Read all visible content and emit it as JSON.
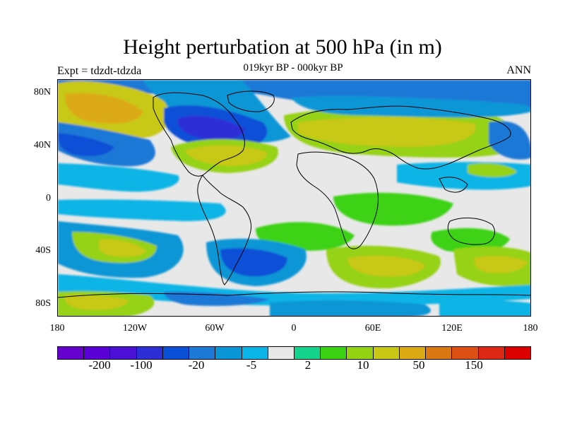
{
  "title": "Height perturbation at 500 hPa (in m)",
  "subtitle": "019kyr BP - 000kyr BP",
  "left_label": "Expt = tdzdt-tdzda",
  "right_label": "ANN",
  "y_axis_labels": [
    "80N",
    "40N",
    "0",
    "40S",
    "80S"
  ],
  "x_axis_labels": [
    "180",
    "120W",
    "60W",
    "0",
    "60E",
    "120E",
    "180"
  ],
  "colorbar": {
    "colors": [
      "#6600cc",
      "#5a00d6",
      "#4a10d6",
      "#2e2ed6",
      "#0a50d6",
      "#1e78d6",
      "#0a96d6",
      "#0ab4e6",
      "#e8e8e8",
      "#14d28c",
      "#3cd214",
      "#96d214",
      "#c8c814",
      "#dcaa14",
      "#dc7814",
      "#dc5014",
      "#dc2814",
      "#dc0000"
    ],
    "tick_labels": [
      "-200",
      "-100",
      "-20",
      "-5",
      "2",
      "10",
      "50",
      "150"
    ]
  }
}
